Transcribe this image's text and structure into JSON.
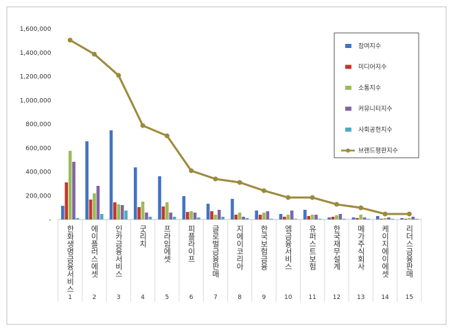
{
  "chart_data": {
    "type": "bar",
    "categories": [
      "한화생명금융서비스",
      "에이플러스에셋",
      "인카금융서비스",
      "굿리치",
      "프라임에셋",
      "피플라이프",
      "글로벌금융판매",
      "지에이코리아",
      "한국보험금융",
      "엠금융서비스",
      "유퍼스트보험",
      "한국재무설계",
      "메가주식회사",
      "케이지에이에셋",
      "리더스금융판매"
    ],
    "category_numbers": [
      1,
      2,
      3,
      4,
      5,
      6,
      7,
      8,
      9,
      10,
      11,
      12,
      13,
      14,
      15
    ],
    "series": [
      {
        "name": "참여지수",
        "color": "#4472c4",
        "values": [
          115000,
          656000,
          748000,
          437000,
          363000,
          196000,
          132000,
          173000,
          75000,
          46000,
          81000,
          17000,
          17000,
          29000,
          12000
        ]
      },
      {
        "name": "미디어지수",
        "color": "#c0392b",
        "values": [
          311000,
          167000,
          144000,
          104000,
          109000,
          63000,
          69000,
          40000,
          40000,
          23000,
          29000,
          23000,
          12000,
          6000,
          6000
        ]
      },
      {
        "name": "소통지수",
        "color": "#9bbb59",
        "values": [
          576000,
          219000,
          127000,
          150000,
          144000,
          69000,
          40000,
          58000,
          58000,
          40000,
          40000,
          35000,
          40000,
          12000,
          12000
        ]
      },
      {
        "name": "커뮤니티지수",
        "color": "#8064a2",
        "values": [
          484000,
          282000,
          121000,
          58000,
          58000,
          58000,
          81000,
          23000,
          69000,
          75000,
          40000,
          46000,
          17000,
          17000,
          23000
        ]
      },
      {
        "name": "사회공헌지수",
        "color": "#4bacc6",
        "values": [
          12000,
          46000,
          75000,
          23000,
          23000,
          17000,
          23000,
          12000,
          6000,
          6000,
          6000,
          6000,
          6000,
          6000,
          6000
        ]
      },
      {
        "name": "브랜드평판지수",
        "color": "#9c8a3c",
        "type": "line",
        "values": [
          1505000,
          1387000,
          1209000,
          788000,
          702000,
          409000,
          340000,
          311000,
          242000,
          184000,
          184000,
          127000,
          98000,
          46000,
          46000
        ]
      }
    ],
    "ylim": [
      0,
      1600000
    ],
    "yticks": [
      {
        "value": 0,
        "label": "-"
      },
      {
        "value": 200000,
        "label": "200,000"
      },
      {
        "value": 400000,
        "label": "400,000"
      },
      {
        "value": 600000,
        "label": "600,000"
      },
      {
        "value": 800000,
        "label": "800,000"
      },
      {
        "value": 1000000,
        "label": "1,000,000"
      },
      {
        "value": 1200000,
        "label": "1,200,000"
      },
      {
        "value": 1400000,
        "label": "1,400,000"
      },
      {
        "value": 1600000,
        "label": "1,600,000"
      }
    ],
    "legend": "right"
  }
}
